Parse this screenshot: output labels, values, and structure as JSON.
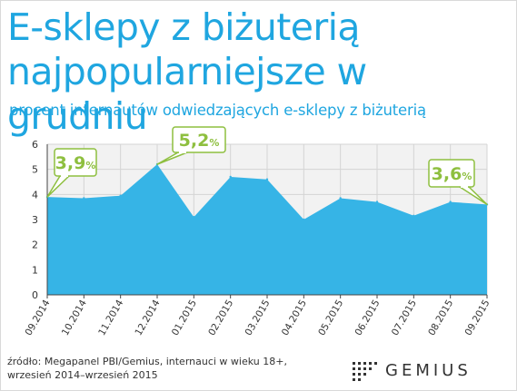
{
  "title_line1": "E-sklepy z biżuterią",
  "title_line2": "najpopularniejsze w grudniu",
  "subtitle": "procent  internautów odwiedzających e-sklepy z biżuterią",
  "source_line1": "źródło: Megapanel PBI/Gemius, internauci w wieku 18+,",
  "source_line2": "wrzesień 2014–wrzesień 2015",
  "logo_text": "GEMIUS",
  "colors": {
    "title": "#1fa6e0",
    "area": "#36b4e6",
    "callout": "#8ebf3f",
    "plot_bg": "#f2f2f2",
    "grid": "#d4d4d4"
  },
  "chart_data": {
    "type": "area",
    "title": "E-sklepy z biżuterią najpopularniejsze w grudniu",
    "subtitle": "procent  internautów odwiedzających e-sklepy z biżuterią",
    "categories": [
      "09.2014",
      "10.2014",
      "11.2014",
      "12.2014",
      "01.2015",
      "02.2015",
      "03.2015",
      "04.2015",
      "05.2015",
      "06.2015",
      "07.2015",
      "08.2015",
      "09.2015"
    ],
    "values": [
      3.9,
      3.85,
      3.95,
      5.2,
      3.1,
      4.7,
      4.6,
      3.0,
      3.85,
      3.7,
      3.15,
      3.7,
      3.6
    ],
    "ylim": [
      0,
      6
    ],
    "yticks": [
      "0",
      "1",
      "2",
      "3",
      "4",
      "5",
      "6"
    ],
    "grid": true,
    "annotations": [
      {
        "label": "3,9",
        "unit": "%",
        "index": 0
      },
      {
        "label": "5,2",
        "unit": "%",
        "index": 3
      },
      {
        "label": "3,6",
        "unit": "%",
        "index": 12
      }
    ]
  }
}
